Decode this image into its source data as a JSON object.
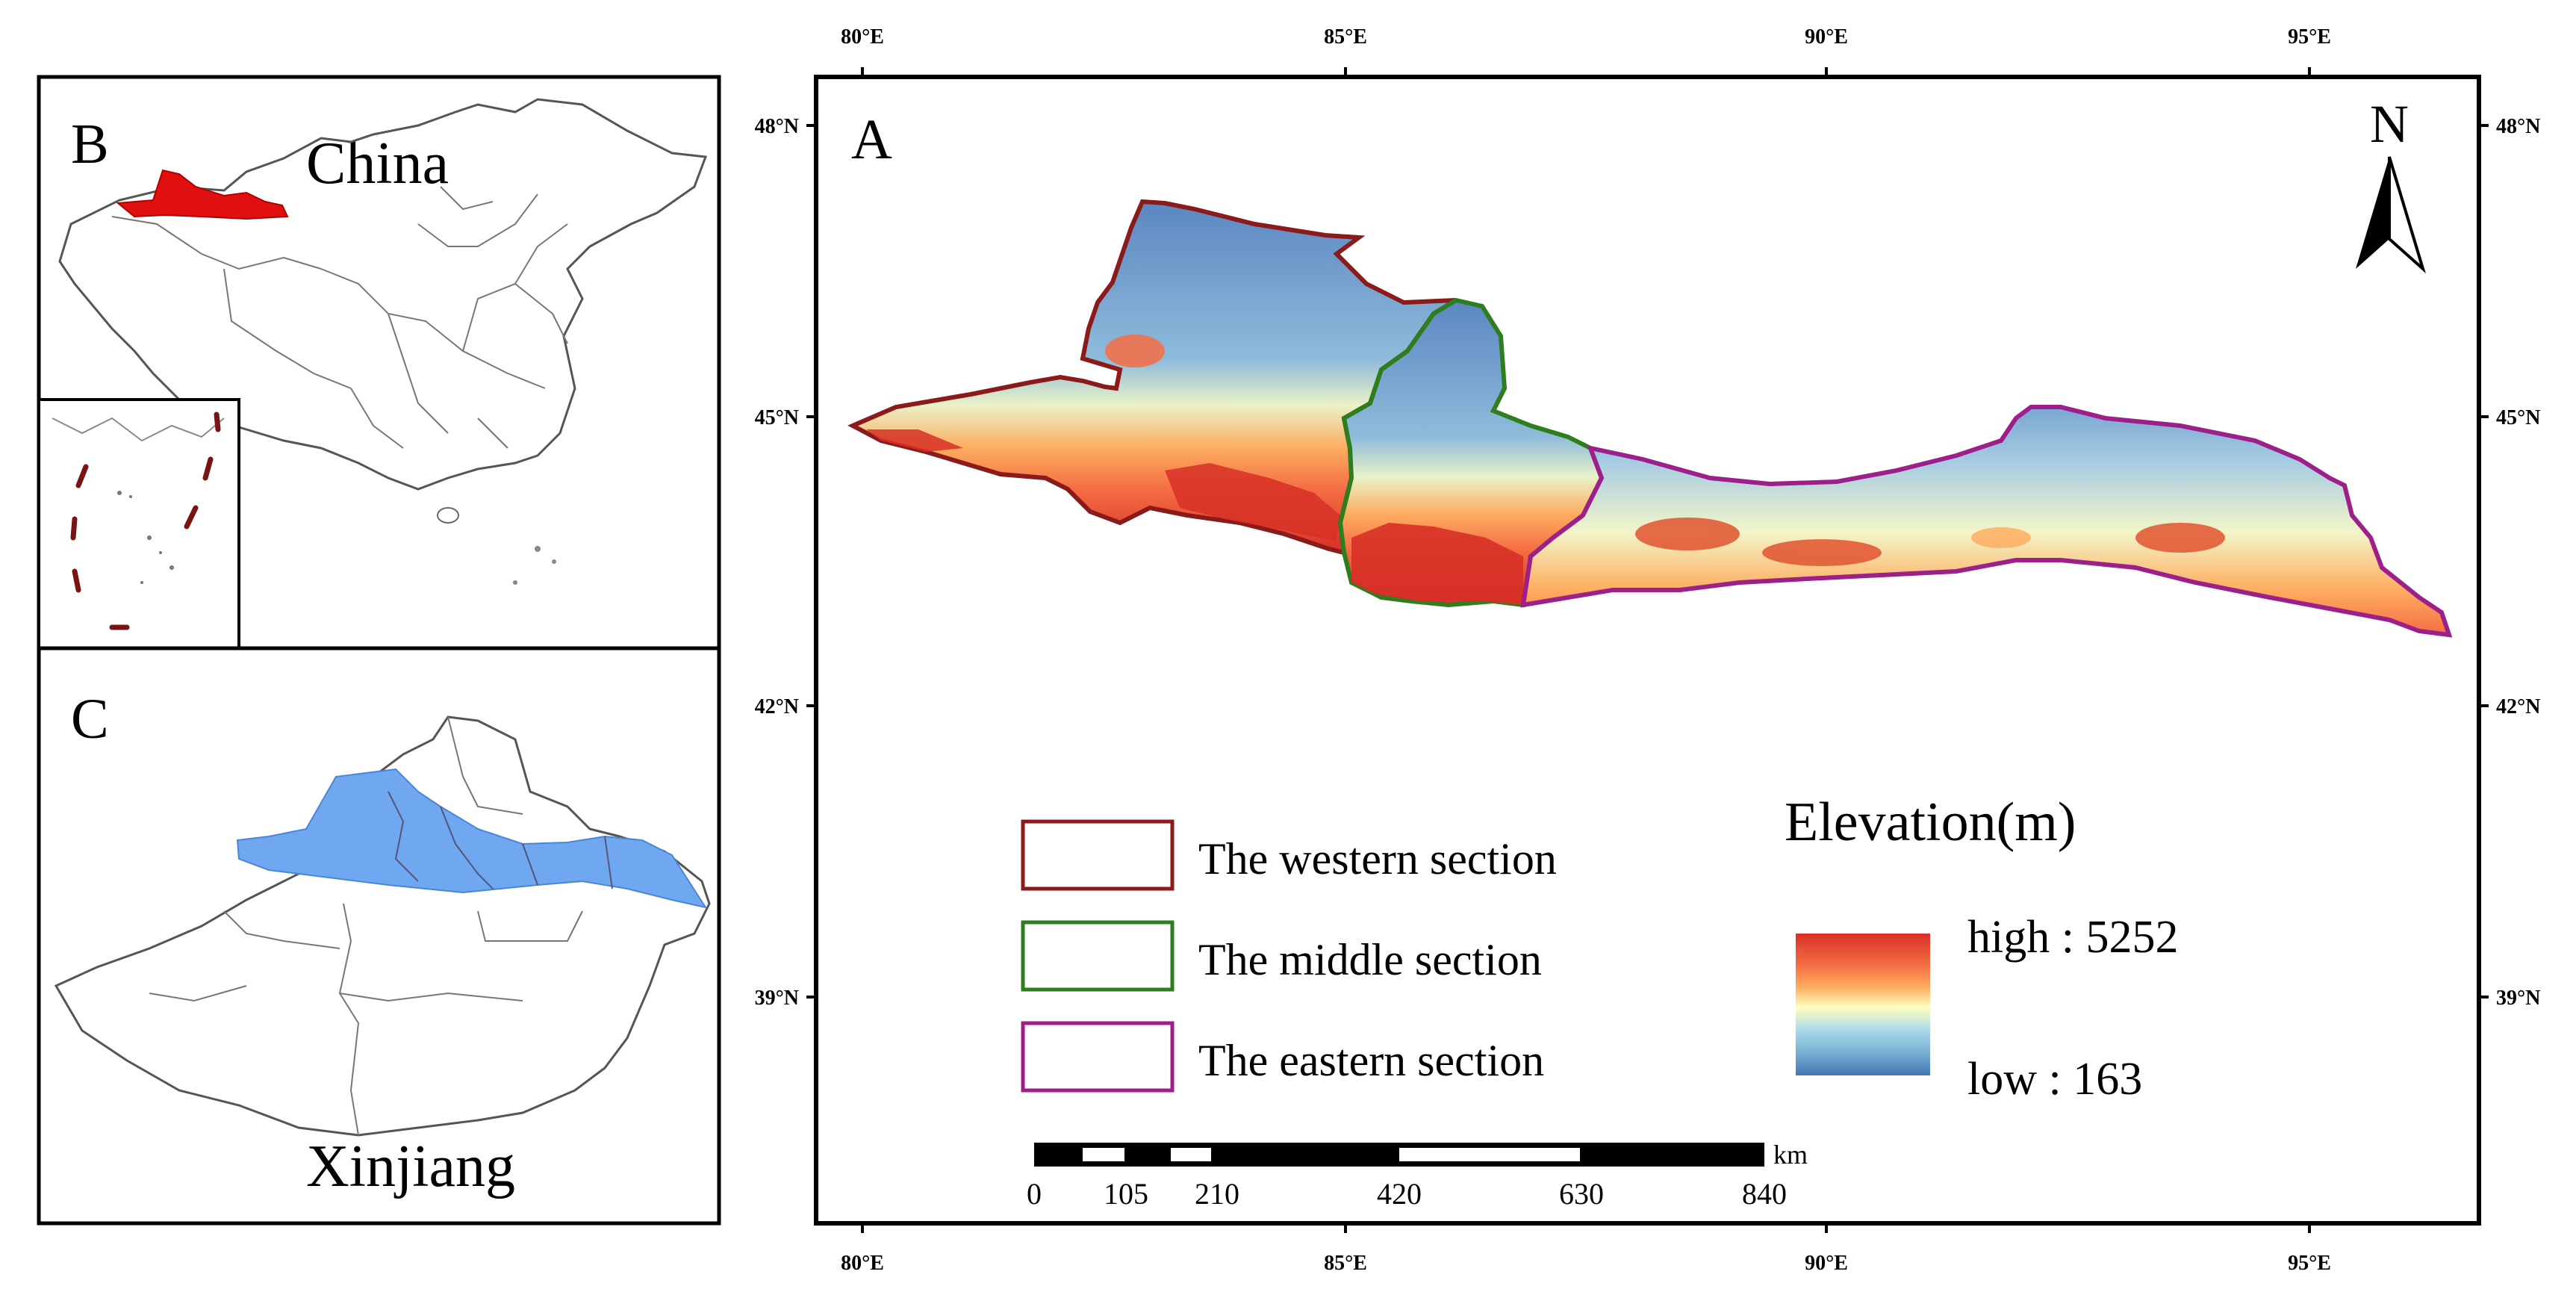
{
  "panel_a": {
    "letter": "A",
    "north_label": "N",
    "lon_ticks": [
      "80°E",
      "85°E",
      "90°E",
      "95°E"
    ],
    "lat_ticks": [
      "48°N",
      "45°N",
      "42°N",
      "39°N"
    ],
    "legend": {
      "sections": [
        {
          "label": "The western section",
          "color": "#8b1a1a"
        },
        {
          "label": "The middle section",
          "color": "#2e7d1e"
        },
        {
          "label": "The eastern section",
          "color": "#9c1f8a"
        }
      ],
      "elevation_title": "Elevation(m)",
      "high_label": "high : 5252",
      "low_label": "low : 163",
      "ramp_colors": [
        "#d73027",
        "#f46d43",
        "#fdae61",
        "#ffffbf",
        "#abd9e9",
        "#74add1",
        "#4575b4"
      ]
    },
    "scale_bar": {
      "unit": "km",
      "labels": [
        "0",
        "105",
        "210",
        "420",
        "630",
        "840"
      ]
    }
  },
  "panel_b": {
    "letter": "B",
    "country_label": "China",
    "highlight_color": "#e01010"
  },
  "panel_c": {
    "letter": "C",
    "region_label": "Xinjiang",
    "highlight_color": "#6fa8f0"
  }
}
